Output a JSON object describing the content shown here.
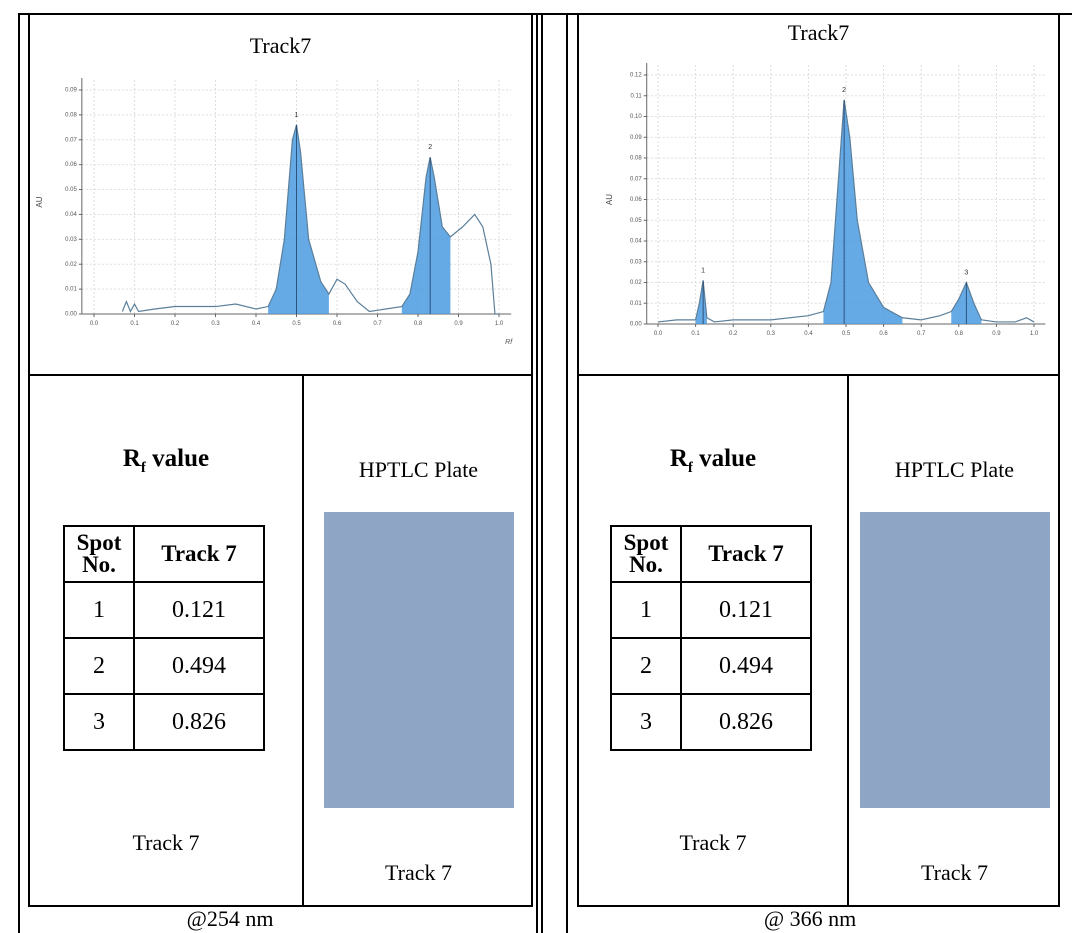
{
  "panels": [
    {
      "chart": {
        "type": "line",
        "title": "Track7",
        "ylabel": "AU",
        "xlabel": "Rf",
        "color": "#5b7f9a",
        "fill": "#4a9ae0",
        "x": [
          0.07,
          0.08,
          0.09,
          0.1,
          0.11,
          0.15,
          0.2,
          0.3,
          0.35,
          0.4,
          0.43,
          0.45,
          0.47,
          0.49,
          0.5,
          0.51,
          0.53,
          0.56,
          0.58,
          0.6,
          0.62,
          0.65,
          0.68,
          0.72,
          0.76,
          0.78,
          0.8,
          0.82,
          0.83,
          0.84,
          0.86,
          0.88,
          0.91,
          0.94,
          0.96,
          0.98,
          0.99,
          1.0
        ],
        "values": [
          0.001,
          0.005,
          0.001,
          0.004,
          0.001,
          0.002,
          0.003,
          0.003,
          0.004,
          0.002,
          0.003,
          0.01,
          0.03,
          0.07,
          0.076,
          0.065,
          0.03,
          0.013,
          0.008,
          0.014,
          0.012,
          0.005,
          0.001,
          0.002,
          0.003,
          0.008,
          0.025,
          0.055,
          0.063,
          0.055,
          0.035,
          0.031,
          0.035,
          0.04,
          0.035,
          0.02,
          0.0,
          0.0
        ],
        "shaded_ranges": [
          [
            0.43,
            0.58
          ],
          [
            0.76,
            0.88
          ]
        ],
        "peaks": [
          {
            "label": "1",
            "x": 0.5,
            "y": 0.076
          },
          {
            "label": "2",
            "x": 0.83,
            "y": 0.063
          }
        ],
        "xlim": [
          -0.03,
          1.03
        ],
        "ylim": [
          0,
          0.09
        ],
        "xticks": [
          {
            "value": 0,
            "label": "0.0"
          },
          0.1,
          0.2,
          0.3,
          0.4,
          0.5,
          0.6,
          0.7,
          0.8,
          0.9,
          {
            "value": 1,
            "label": "1.0"
          }
        ],
        "yticks": [
          {
            "value": 0,
            "label": "0.00"
          },
          0.01,
          0.02,
          0.03,
          0.04,
          0.05,
          0.06,
          0.07,
          0.08,
          0.09
        ],
        "grid": true
      },
      "rf_table": {
        "title": {
          "main": "R",
          "sub": "f",
          "rest": " value"
        },
        "header": [
          "Spot No.",
          "Track 7"
        ],
        "rows": [
          [
            "1",
            "0.121"
          ],
          [
            "2",
            "0.494"
          ],
          [
            "3",
            "0.826"
          ]
        ]
      },
      "track_label": "Track 7",
      "plate": {
        "title": "HPTLC Plate",
        "color": "#8ea5c6",
        "label": "Track 7"
      },
      "caption": "@254 nm"
    },
    {
      "chart": {
        "type": "line",
        "title": "Track7",
        "ylabel": "AU",
        "color": "#5b7f9a",
        "fill": "#4a9ae0",
        "x": [
          0.0,
          0.05,
          0.1,
          0.11,
          0.12,
          0.13,
          0.15,
          0.2,
          0.3,
          0.4,
          0.44,
          0.46,
          0.48,
          0.495,
          0.51,
          0.53,
          0.56,
          0.6,
          0.65,
          0.7,
          0.75,
          0.78,
          0.8,
          0.82,
          0.84,
          0.86,
          0.9,
          0.95,
          0.98,
          1.0
        ],
        "values": [
          0.001,
          0.002,
          0.002,
          0.01,
          0.021,
          0.003,
          0.001,
          0.002,
          0.002,
          0.004,
          0.006,
          0.02,
          0.07,
          0.108,
          0.09,
          0.05,
          0.02,
          0.008,
          0.003,
          0.002,
          0.004,
          0.006,
          0.012,
          0.02,
          0.01,
          0.002,
          0.001,
          0.001,
          0.003,
          0.001
        ],
        "shaded_ranges": [
          [
            0.1,
            0.13
          ],
          [
            0.44,
            0.65
          ],
          [
            0.78,
            0.86
          ]
        ],
        "peaks": [
          {
            "label": "1",
            "x": 0.12,
            "y": 0.021
          },
          {
            "label": "2",
            "x": 0.495,
            "y": 0.108
          },
          {
            "label": "3",
            "x": 0.82,
            "y": 0.02
          }
        ],
        "xlim": [
          -0.03,
          1.03
        ],
        "ylim": [
          0,
          0.12
        ],
        "xticks": [
          {
            "value": 0,
            "label": "0.0"
          },
          0.1,
          0.2,
          0.3,
          0.4,
          0.5,
          0.6,
          0.7,
          0.8,
          0.9,
          {
            "value": 1,
            "label": "1.0"
          }
        ],
        "yticks": [
          {
            "value": 0,
            "label": "0.00"
          },
          0.01,
          0.02,
          0.03,
          0.04,
          0.05,
          0.06,
          0.07,
          0.08,
          0.09,
          {
            "value": 0.1,
            "label": "0.10"
          },
          0.11,
          {
            "value": 0.12,
            "label": "0.12"
          }
        ],
        "grid": true
      },
      "rf_table": {
        "title": {
          "main": "R",
          "sub": "f",
          "rest": " value"
        },
        "header": [
          "Spot No.",
          "Track 7"
        ],
        "rows": [
          [
            "1",
            "0.121"
          ],
          [
            "2",
            "0.494"
          ],
          [
            "3",
            "0.826"
          ]
        ]
      },
      "track_label": "Track 7",
      "plate": {
        "title": "HPTLC Plate",
        "color": "#8ea5c6",
        "label": "Track 7"
      },
      "caption": "@ 366 nm"
    }
  ]
}
